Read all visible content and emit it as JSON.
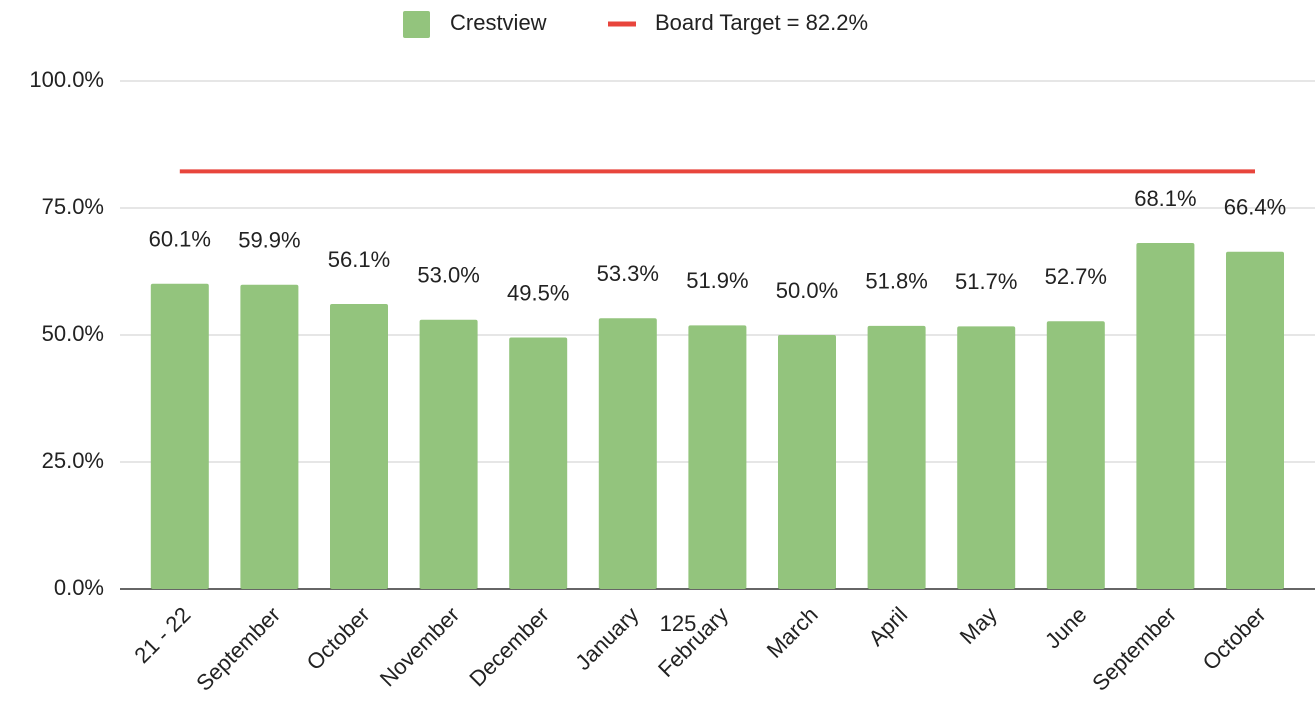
{
  "chart_data": {
    "type": "bar",
    "categories": [
      "21 - 22",
      "September",
      "October",
      "November",
      "December",
      "January",
      "February",
      "March",
      "April",
      "May",
      "June",
      "September",
      "October"
    ],
    "series": [
      {
        "name": "Crestview",
        "color": "#93c47d",
        "type": "bar",
        "values": [
          60.1,
          59.9,
          56.1,
          53.0,
          49.5,
          53.3,
          51.9,
          50.0,
          51.8,
          51.7,
          52.7,
          68.1,
          66.4
        ],
        "value_labels": [
          "60.1%",
          "59.9%",
          "56.1%",
          "53.0%",
          "49.5%",
          "53.3%",
          "51.9%",
          "50.0%",
          "51.8%",
          "51.7%",
          "52.7%",
          "68.1%",
          "66.4%"
        ]
      },
      {
        "name": "Board Target = 82.2%",
        "color": "#e8453c",
        "type": "line",
        "values": [
          82.2,
          82.2,
          82.2,
          82.2,
          82.2,
          82.2,
          82.2,
          82.2,
          82.2,
          82.2,
          82.2,
          82.2,
          82.2
        ]
      }
    ],
    "ylim": [
      0,
      100
    ],
    "yticks": [
      {
        "value": 0,
        "label": "0.0%"
      },
      {
        "value": 25,
        "label": "25.0%"
      },
      {
        "value": 50,
        "label": "50.0%"
      },
      {
        "value": 75,
        "label": "75.0%"
      },
      {
        "value": 100,
        "label": "100.0%"
      }
    ],
    "grid": true,
    "legend": "top",
    "annotation": "125"
  }
}
